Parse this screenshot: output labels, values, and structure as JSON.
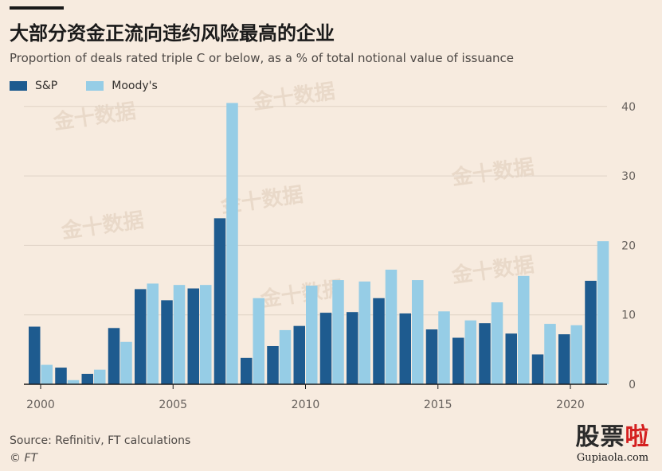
{
  "header": {
    "title": "大部分资金正流向违约风险最高的企业",
    "subtitle": "Proportion of deals rated triple C or below, as a % of total notional value of issuance"
  },
  "footer": {
    "source": "Source: Refinitiv, FT calculations",
    "copyright": "© FT"
  },
  "watermark": {
    "repeat_text": "金十数据",
    "logo_chars_dark": "股票",
    "logo_chars_red": "啦",
    "logo_url": "Gupiaola.com"
  },
  "colors": {
    "sp": "#1e5b8f",
    "moodys": "#96cde6",
    "gridline": "#e0d3c6",
    "axis": "#66605c",
    "background": "#f7ebdf"
  },
  "chart_data": {
    "type": "bar",
    "categories": [
      2000,
      2001,
      2002,
      2003,
      2004,
      2005,
      2006,
      2007,
      2008,
      2009,
      2010,
      2011,
      2012,
      2013,
      2014,
      2015,
      2016,
      2017,
      2018,
      2019,
      2020,
      2021
    ],
    "x_tick_labels": [
      "2000",
      "2005",
      "2010",
      "2015",
      "2020"
    ],
    "series": [
      {
        "name": "S&P",
        "values": [
          8.3,
          2.4,
          1.5,
          8.1,
          13.7,
          12.1,
          13.8,
          23.9,
          3.8,
          5.5,
          8.4,
          10.3,
          10.4,
          12.4,
          10.2,
          7.9,
          6.7,
          8.8,
          7.3,
          4.3,
          7.2,
          14.9
        ]
      },
      {
        "name": "Moody's",
        "values": [
          2.8,
          0.6,
          2.1,
          6.1,
          14.5,
          14.3,
          14.3,
          40.5,
          12.4,
          7.8,
          14.2,
          15.0,
          14.8,
          16.5,
          15.0,
          10.5,
          9.2,
          11.8,
          15.6,
          8.7,
          8.5,
          20.6
        ]
      }
    ],
    "y_ticks": [
      0,
      10,
      20,
      30,
      40
    ],
    "ylim": [
      0,
      42
    ],
    "y_axis_side": "right",
    "grid": true,
    "legend_position": "top-left"
  }
}
